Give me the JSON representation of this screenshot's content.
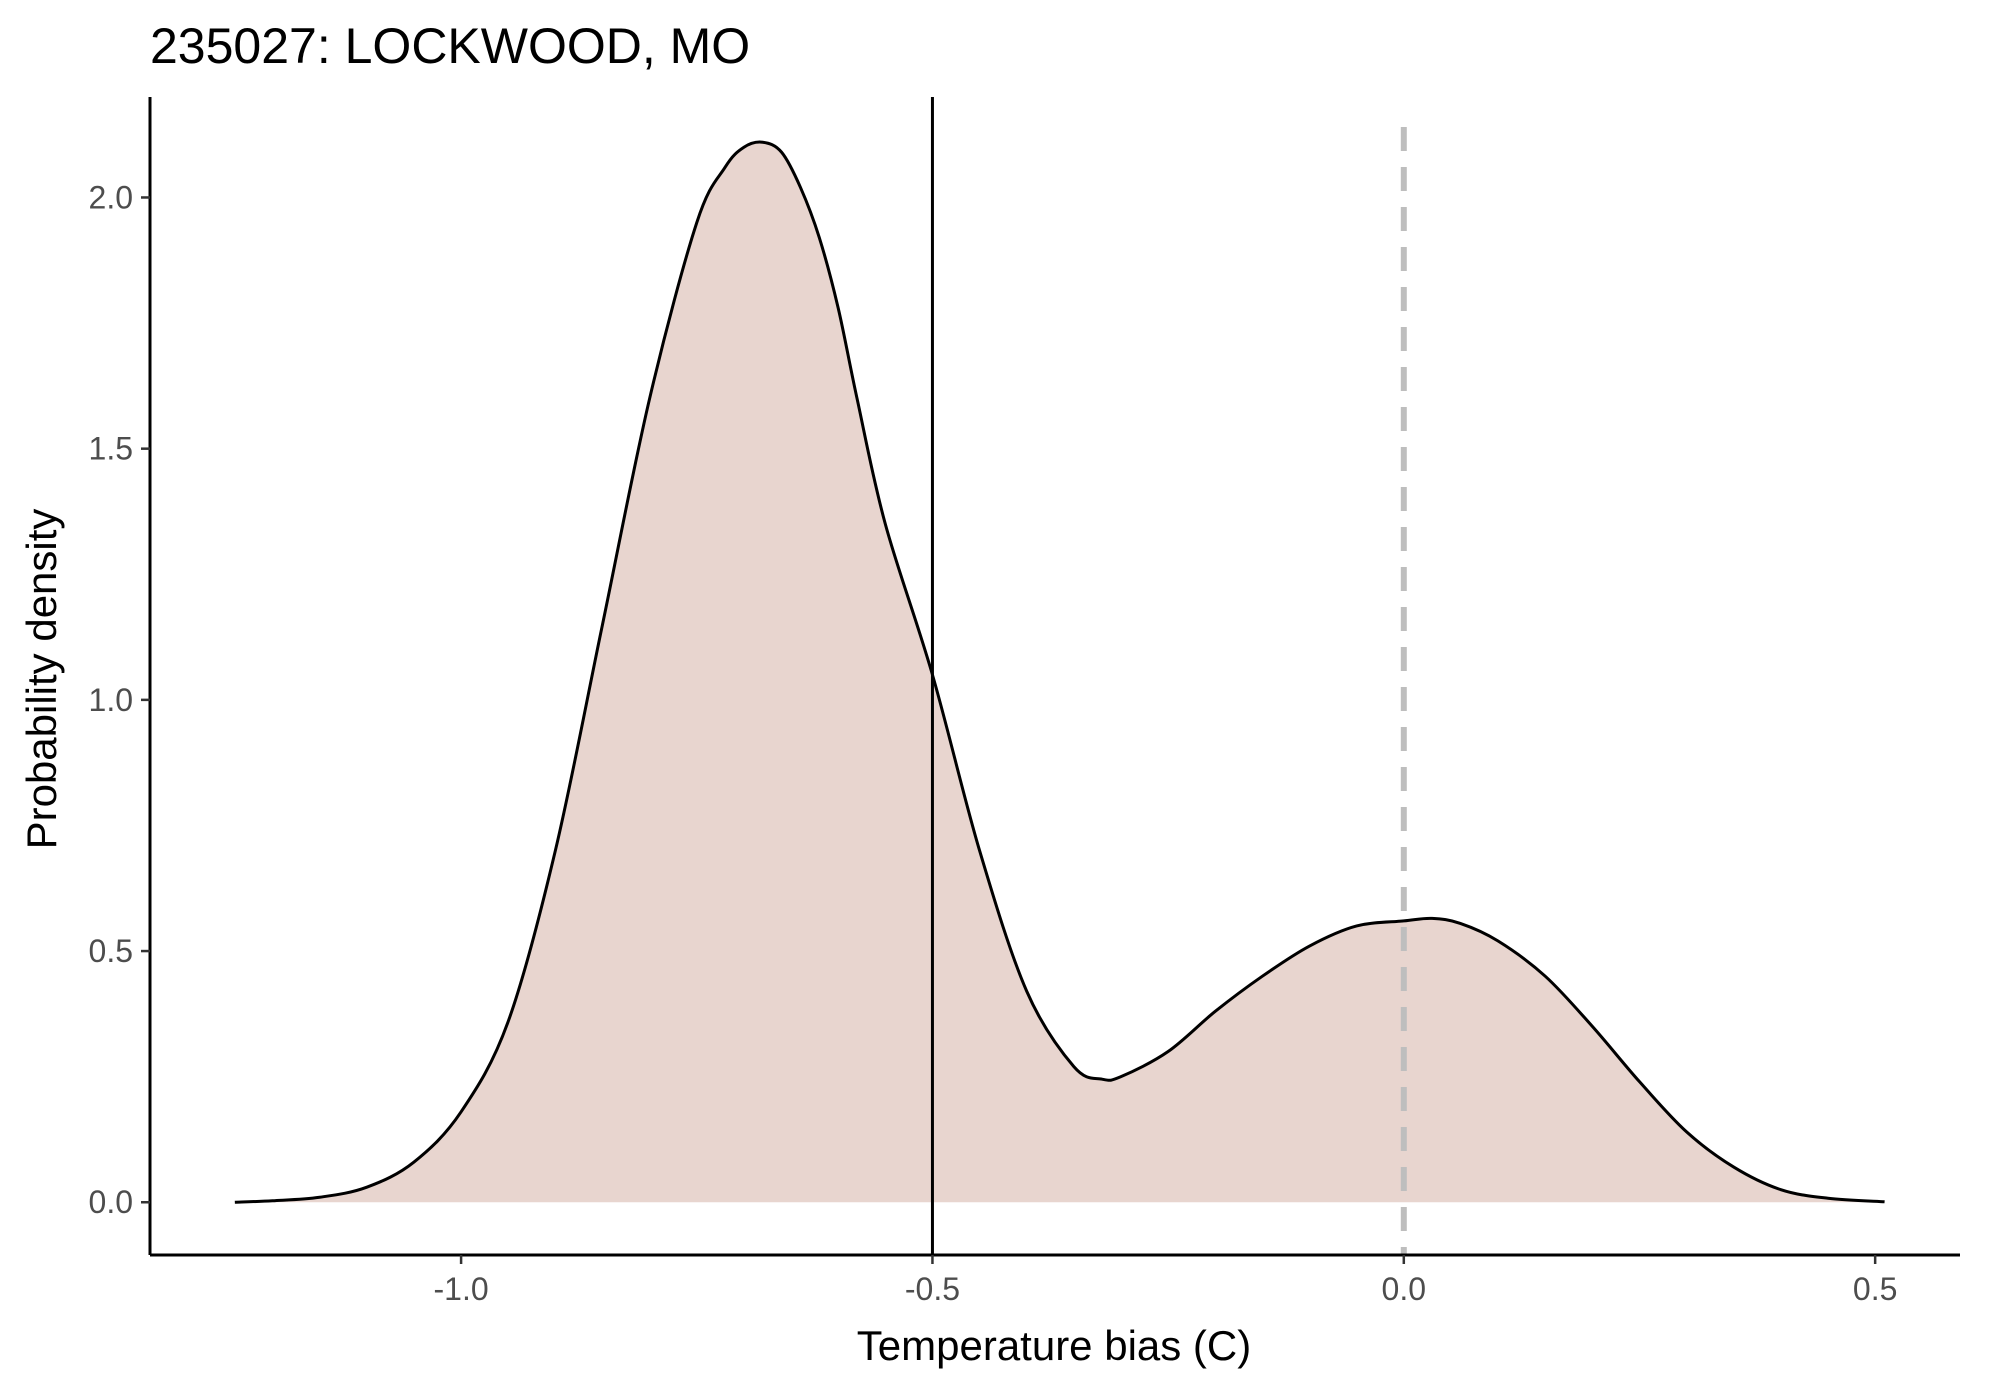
{
  "chart_data": {
    "type": "area",
    "title": "235027: LOCKWOOD, MO",
    "xlabel": "Temperature bias (C)",
    "ylabel": "Probability density",
    "xlim": [
      -1.33,
      0.59
    ],
    "ylim": [
      -0.105,
      2.2
    ],
    "xticks": [
      -1.0,
      -0.5,
      0.0,
      0.5
    ],
    "xtick_labels": [
      "-1.0",
      "-0.5",
      "0.0",
      "0.5"
    ],
    "yticks": [
      0.0,
      0.5,
      1.0,
      1.5,
      2.0
    ],
    "ytick_labels": [
      "0.0",
      "0.5",
      "1.0",
      "1.5",
      "2.0"
    ],
    "grid": false,
    "fill_color": "#e8d5cf",
    "line_color": "#000000",
    "series": [
      {
        "x": [
          -1.24,
          -1.2,
          -1.15,
          -1.1,
          -1.05,
          -1.0,
          -0.95,
          -0.9,
          -0.85,
          -0.8,
          -0.75,
          -0.72,
          -0.7,
          -0.68,
          -0.66,
          -0.64,
          -0.62,
          -0.6,
          -0.58,
          -0.55,
          -0.5,
          -0.45,
          -0.4,
          -0.35,
          -0.32,
          -0.3,
          -0.25,
          -0.2,
          -0.15,
          -0.1,
          -0.05,
          0.0,
          0.03,
          0.06,
          0.1,
          0.15,
          0.2,
          0.25,
          0.3,
          0.35,
          0.4,
          0.45,
          0.51
        ],
        "y": [
          0.0,
          0.003,
          0.01,
          0.03,
          0.08,
          0.18,
          0.36,
          0.7,
          1.15,
          1.6,
          1.95,
          2.06,
          2.1,
          2.11,
          2.09,
          2.02,
          1.92,
          1.78,
          1.6,
          1.35,
          1.05,
          0.7,
          0.42,
          0.27,
          0.245,
          0.25,
          0.3,
          0.38,
          0.45,
          0.51,
          0.55,
          0.56,
          0.565,
          0.555,
          0.52,
          0.45,
          0.35,
          0.24,
          0.14,
          0.07,
          0.025,
          0.008,
          0.001
        ]
      }
    ],
    "vlines": [
      {
        "x": -0.5,
        "style": "solid",
        "color": "#000000"
      },
      {
        "x": 0.0,
        "style": "dashed",
        "color": "#bebebe"
      }
    ]
  }
}
